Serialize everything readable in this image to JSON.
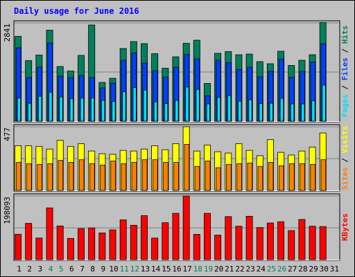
{
  "chart_data": {
    "type": "bar",
    "title": "Daily usage for June 2016",
    "days": [
      "1",
      "2",
      "3",
      "4",
      "5",
      "6",
      "7",
      "8",
      "9",
      "10",
      "11",
      "12",
      "13",
      "14",
      "15",
      "16",
      "17",
      "18",
      "19",
      "20",
      "21",
      "22",
      "23",
      "24",
      "25",
      "26",
      "27",
      "28",
      "29",
      "30",
      "31"
    ],
    "weekend_days": [
      "4",
      "5",
      "11",
      "12",
      "18",
      "19",
      "25",
      "26"
    ],
    "colors": {
      "background": "#c0c0c0",
      "title": "#0000ff",
      "hits": "#00805c",
      "files": "#0040ff",
      "pages": "#00e0ff",
      "visits": "#ffff00",
      "sites": "#ff8000",
      "kbytes": "#ff0000",
      "weekday_label": "#000000",
      "weekend_label": "#00805c",
      "legend_separator": "#000000"
    },
    "panels": {
      "usage": {
        "ymax_label": "2841",
        "ymax": 2841,
        "legend": [
          "Pages",
          "Files",
          "Hits"
        ],
        "series": [
          {
            "key": "hits",
            "values": [
              2450,
              1750,
              1910,
              2630,
              1580,
              1450,
              1900,
              2780,
              1120,
              1240,
              2100,
              2300,
              2240,
              1950,
              1530,
              1860,
              2250,
              2340,
              1090,
              1960,
              2010,
              1920,
              1940,
              1720,
              1660,
              2020,
              1610,
              1760,
              1920,
              2850,
              0
            ]
          },
          {
            "key": "files",
            "values": [
              2120,
              1260,
              1560,
              2260,
              1300,
              1260,
              1320,
              1260,
              960,
              1100,
              1760,
              1970,
              1680,
              1460,
              1270,
              1560,
              1930,
              1800,
              730,
              1760,
              1690,
              1490,
              1560,
              1280,
              1440,
              1790,
              1270,
              1440,
              1710,
              2240,
              0
            ]
          },
          {
            "key": "pages",
            "values": [
              670,
              520,
              720,
              840,
              700,
              650,
              670,
              670,
              600,
              570,
              850,
              970,
              900,
              560,
              510,
              600,
              990,
              920,
              500,
              690,
              740,
              580,
              620,
              510,
              520,
              660,
              500,
              500,
              590,
              1040,
              0
            ]
          }
        ]
      },
      "visits": {
        "ymax_label": "477",
        "ymax": 477,
        "legend": [
          "Sites",
          "Visits"
        ],
        "series": [
          {
            "key": "visits",
            "values": [
              335,
              335,
              330,
              310,
              375,
              330,
              350,
              295,
              275,
              270,
              300,
              295,
              310,
              335,
              305,
              350,
              477,
              295,
              340,
              290,
              280,
              350,
              300,
              260,
              380,
              285,
              265,
              295,
              325,
              430,
              0
            ]
          },
          {
            "key": "sites",
            "values": [
              210,
              200,
              195,
              200,
              225,
              210,
              230,
              200,
              190,
              220,
              200,
              210,
              230,
              230,
              210,
              210,
              345,
              180,
              220,
              170,
              195,
              200,
              205,
              180,
              210,
              185,
              200,
              200,
              195,
              230,
              0
            ]
          }
        ]
      },
      "kbytes": {
        "ymax_label": "198093",
        "ymax": 198093,
        "legend": [
          "KBytes"
        ],
        "series": [
          {
            "key": "kbytes",
            "values": [
              79200,
              113000,
              67400,
              161000,
              105000,
              66200,
              96600,
              98800,
              83200,
              92700,
              124000,
              107000,
              137000,
              67300,
              115000,
              144000,
              198093,
              78800,
              144000,
              76500,
              134000,
              104000,
              135000,
              99900,
              114000,
              118000,
              90500,
              125000,
              104000,
              103000,
              0
            ]
          }
        ]
      }
    }
  }
}
